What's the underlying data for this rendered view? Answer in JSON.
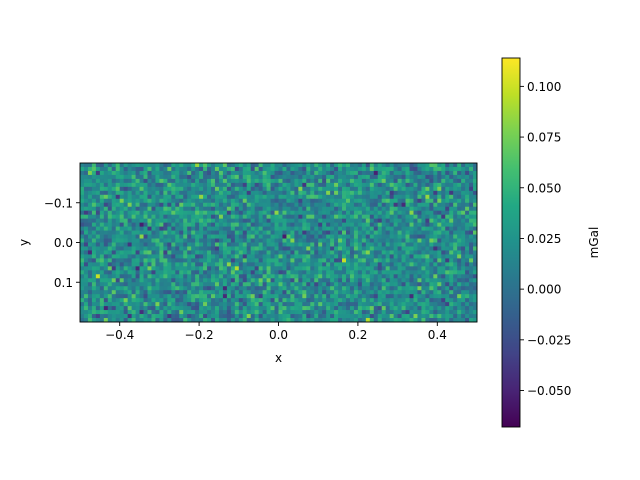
{
  "chart_data": {
    "type": "heatmap",
    "xlabel": "x",
    "ylabel": "y",
    "xlim": [
      -0.5,
      0.5
    ],
    "ylim": [
      0.2,
      -0.2
    ],
    "y_inverted": true,
    "x_ticks": [
      -0.4,
      -0.2,
      0.0,
      0.2,
      0.4
    ],
    "x_tick_labels": [
      "−0.4",
      "−0.2",
      "0.0",
      "0.2",
      "0.4"
    ],
    "y_ticks": [
      -0.1,
      0.0,
      0.1
    ],
    "y_tick_labels": [
      "−0.1",
      "0.0",
      "0.1"
    ],
    "grid": false,
    "colormap": "viridis",
    "colorbar": {
      "label": "mGal",
      "range": [
        -0.068,
        0.114
      ],
      "ticks": [
        -0.05,
        -0.025,
        0.0,
        0.025,
        0.05,
        0.075,
        0.1
      ],
      "tick_labels": [
        "−0.050",
        "−0.025",
        "0.000",
        "0.025",
        "0.050",
        "0.075",
        "0.100"
      ]
    },
    "grid_shape": {
      "columns": 100,
      "rows": 40
    },
    "values_distribution": {
      "mean": 0.02,
      "std": 0.022,
      "min": -0.068,
      "max": 0.114
    }
  }
}
